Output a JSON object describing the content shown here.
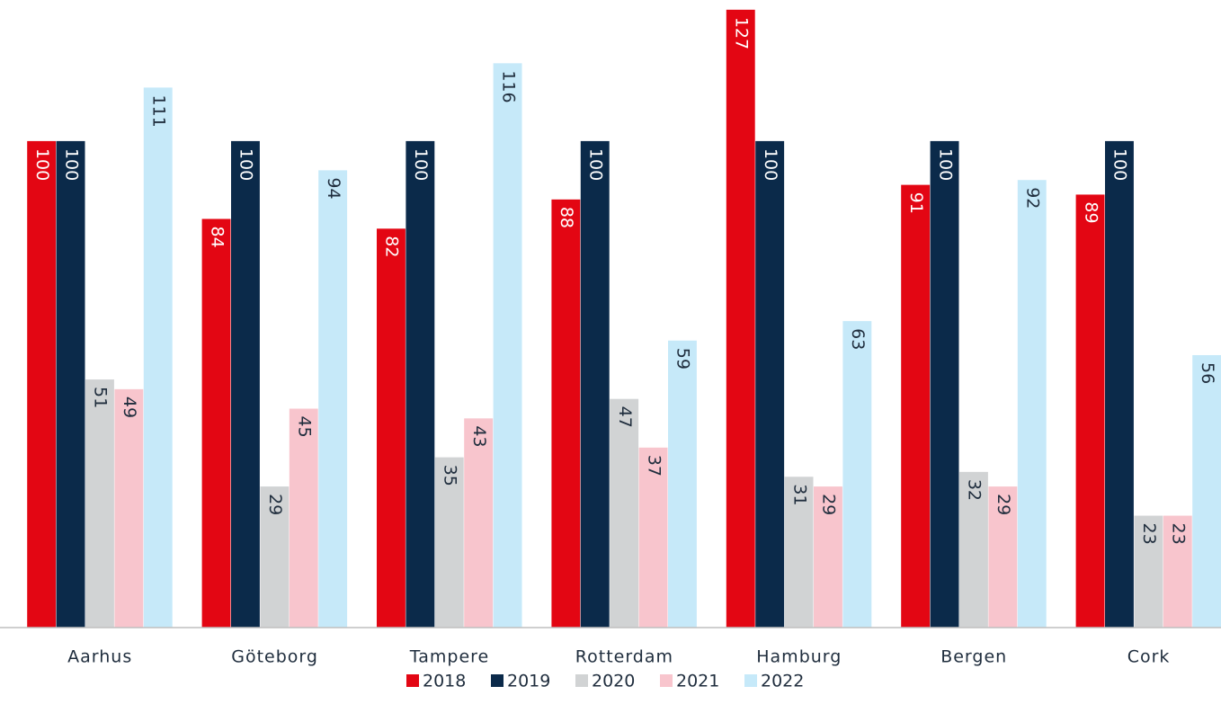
{
  "chart_data": {
    "type": "bar",
    "categories": [
      "Aarhus",
      "Göteborg",
      "Tampere",
      "Rotterdam",
      "Hamburg",
      "Bergen",
      "Cork"
    ],
    "series": [
      {
        "name": "2018",
        "color": "#e30613",
        "values": [
          100,
          84,
          82,
          88,
          127,
          91,
          89
        ]
      },
      {
        "name": "2019",
        "color": "#0b2a4a",
        "values": [
          100,
          100,
          100,
          100,
          100,
          100,
          100
        ]
      },
      {
        "name": "2020",
        "color": "#d1d3d4",
        "values": [
          51,
          29,
          35,
          47,
          31,
          32,
          23
        ]
      },
      {
        "name": "2021",
        "color": "#f8c5cd",
        "values": [
          49,
          45,
          43,
          37,
          29,
          29,
          23
        ]
      },
      {
        "name": "2022",
        "color": "#c6e9f9",
        "values": [
          111,
          94,
          116,
          59,
          63,
          92,
          56
        ]
      }
    ],
    "ylim": [
      0,
      129
    ],
    "legend": "bottom"
  }
}
